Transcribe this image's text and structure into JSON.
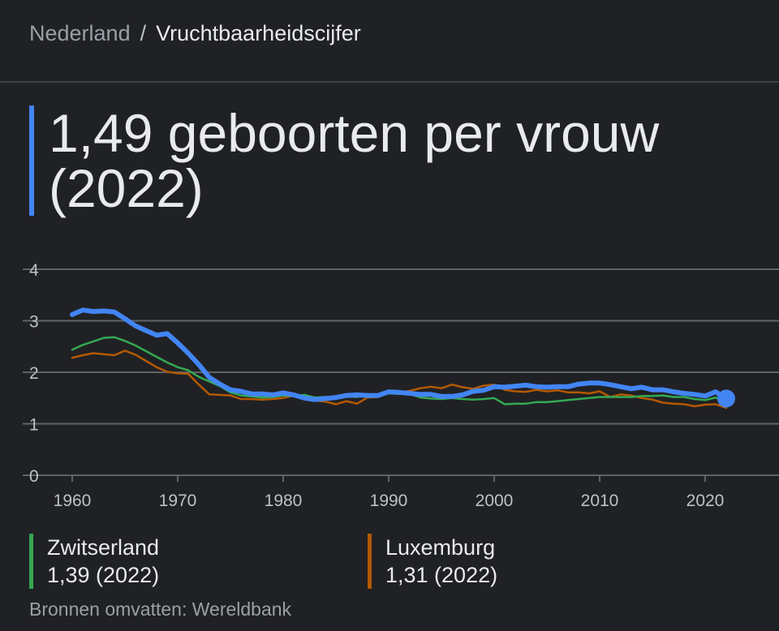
{
  "breadcrumb": {
    "country": "Nederland",
    "separator": "/",
    "topic": "Vruchtbaarheidscijfer"
  },
  "headline": "1,49 geboorten per vrouw (2022)",
  "legend": [
    {
      "name": "Zwitserland",
      "value": "1,39 (2022)",
      "color": "#34a853"
    },
    {
      "name": "Luxemburg",
      "value": "1,31 (2022)",
      "color": "#b35900"
    }
  ],
  "source": "Bronnen omvatten: Wereldbank",
  "colors": {
    "main": "#4285f4",
    "grid": "#5f6368",
    "background": "#202124"
  },
  "chart_data": {
    "type": "line",
    "title": "",
    "xlabel": "",
    "ylabel": "",
    "xlim": [
      1960,
      2022
    ],
    "ylim": [
      0,
      4
    ],
    "yticks": [
      0,
      1,
      2,
      3,
      4
    ],
    "xticks": [
      1960,
      1970,
      1980,
      1990,
      2000,
      2010,
      2020
    ],
    "grid": true,
    "x": [
      1960,
      1961,
      1962,
      1963,
      1964,
      1965,
      1966,
      1967,
      1968,
      1969,
      1970,
      1971,
      1972,
      1973,
      1974,
      1975,
      1976,
      1977,
      1978,
      1979,
      1980,
      1981,
      1982,
      1983,
      1984,
      1985,
      1986,
      1987,
      1988,
      1989,
      1990,
      1991,
      1992,
      1993,
      1994,
      1995,
      1996,
      1997,
      1998,
      1999,
      2000,
      2001,
      2002,
      2003,
      2004,
      2005,
      2006,
      2007,
      2008,
      2009,
      2010,
      2011,
      2012,
      2013,
      2014,
      2015,
      2016,
      2017,
      2018,
      2019,
      2020,
      2021,
      2022
    ],
    "series": [
      {
        "name": "Nederland",
        "values": [
          3.12,
          3.21,
          3.18,
          3.19,
          3.17,
          3.04,
          2.9,
          2.81,
          2.72,
          2.75,
          2.57,
          2.37,
          2.15,
          1.9,
          1.77,
          1.66,
          1.63,
          1.58,
          1.58,
          1.56,
          1.6,
          1.56,
          1.5,
          1.47,
          1.49,
          1.51,
          1.55,
          1.56,
          1.55,
          1.55,
          1.62,
          1.61,
          1.59,
          1.57,
          1.57,
          1.53,
          1.53,
          1.56,
          1.63,
          1.65,
          1.72,
          1.71,
          1.73,
          1.75,
          1.72,
          1.71,
          1.72,
          1.72,
          1.77,
          1.79,
          1.79,
          1.76,
          1.72,
          1.68,
          1.71,
          1.66,
          1.66,
          1.62,
          1.59,
          1.57,
          1.54,
          1.62,
          1.49
        ]
      },
      {
        "name": "Zwitserland",
        "values": [
          2.44,
          2.53,
          2.6,
          2.67,
          2.68,
          2.61,
          2.52,
          2.41,
          2.3,
          2.19,
          2.1,
          2.04,
          1.91,
          1.82,
          1.73,
          1.61,
          1.55,
          1.53,
          1.51,
          1.52,
          1.55,
          1.54,
          1.56,
          1.51,
          1.52,
          1.52,
          1.53,
          1.52,
          1.57,
          1.56,
          1.59,
          1.58,
          1.58,
          1.51,
          1.49,
          1.48,
          1.5,
          1.48,
          1.47,
          1.48,
          1.5,
          1.38,
          1.39,
          1.39,
          1.42,
          1.42,
          1.44,
          1.46,
          1.48,
          1.5,
          1.52,
          1.52,
          1.52,
          1.52,
          1.54,
          1.54,
          1.55,
          1.52,
          1.52,
          1.48,
          1.46,
          1.51,
          1.39
        ]
      },
      {
        "name": "Luxemburg",
        "values": [
          2.28,
          2.33,
          2.37,
          2.35,
          2.33,
          2.42,
          2.34,
          2.22,
          2.1,
          2.01,
          1.98,
          1.97,
          1.76,
          1.57,
          1.56,
          1.55,
          1.48,
          1.48,
          1.47,
          1.48,
          1.5,
          1.55,
          1.49,
          1.45,
          1.43,
          1.38,
          1.44,
          1.39,
          1.51,
          1.52,
          1.61,
          1.6,
          1.64,
          1.69,
          1.72,
          1.69,
          1.76,
          1.71,
          1.68,
          1.74,
          1.76,
          1.66,
          1.63,
          1.62,
          1.66,
          1.63,
          1.65,
          1.61,
          1.61,
          1.59,
          1.63,
          1.52,
          1.57,
          1.55,
          1.5,
          1.47,
          1.41,
          1.39,
          1.38,
          1.34,
          1.37,
          1.38,
          1.31
        ]
      }
    ]
  }
}
